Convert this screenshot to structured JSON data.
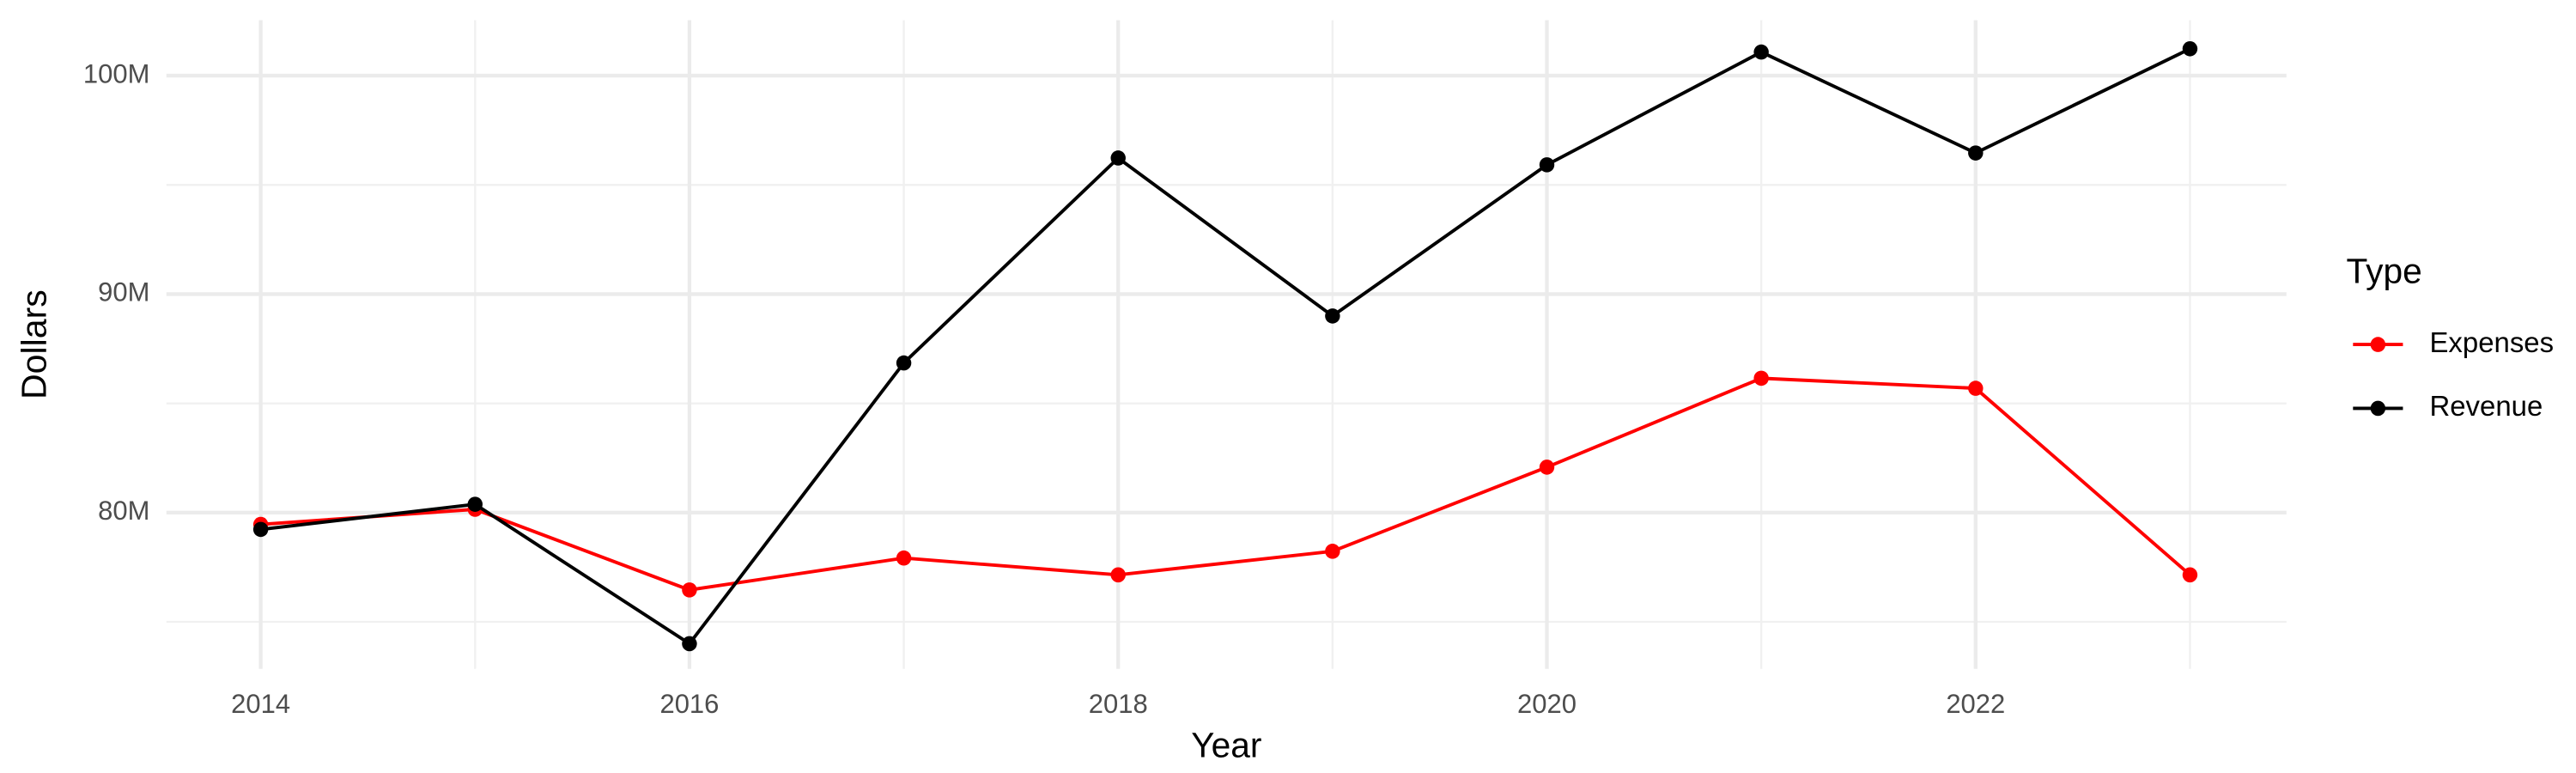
{
  "chart_data": {
    "type": "line",
    "x_label": "Year",
    "y_label": "Dollars",
    "x": [
      2014,
      2015,
      2016,
      2017,
      2018,
      2019,
      2020,
      2021,
      2022,
      2023
    ],
    "series": [
      {
        "name": "Expenses",
        "color": "#ff0000",
        "values": [
          79460000,
          80150000,
          76460000,
          77920000,
          77150000,
          78230000,
          82080000,
          86150000,
          85690000,
          77150000
        ]
      },
      {
        "name": "Revenue",
        "color": "#000000",
        "values": [
          79230000,
          80380000,
          74000000,
          86850000,
          96230000,
          89000000,
          95920000,
          101080000,
          96460000,
          101230000
        ]
      }
    ],
    "xlim": [
      2013.56,
      2023.45
    ],
    "xticks": [
      2014,
      2016,
      2018,
      2020,
      2022
    ],
    "ylim": [
      72850000,
      102540000
    ],
    "yticks": [
      {
        "value": 80000000,
        "label": "80M"
      },
      {
        "value": 90000000,
        "label": "90M"
      },
      {
        "value": 100000000,
        "label": "100M"
      }
    ],
    "grid": true,
    "minor_grid": true,
    "legend_title": "Type",
    "legend_position": "right"
  }
}
